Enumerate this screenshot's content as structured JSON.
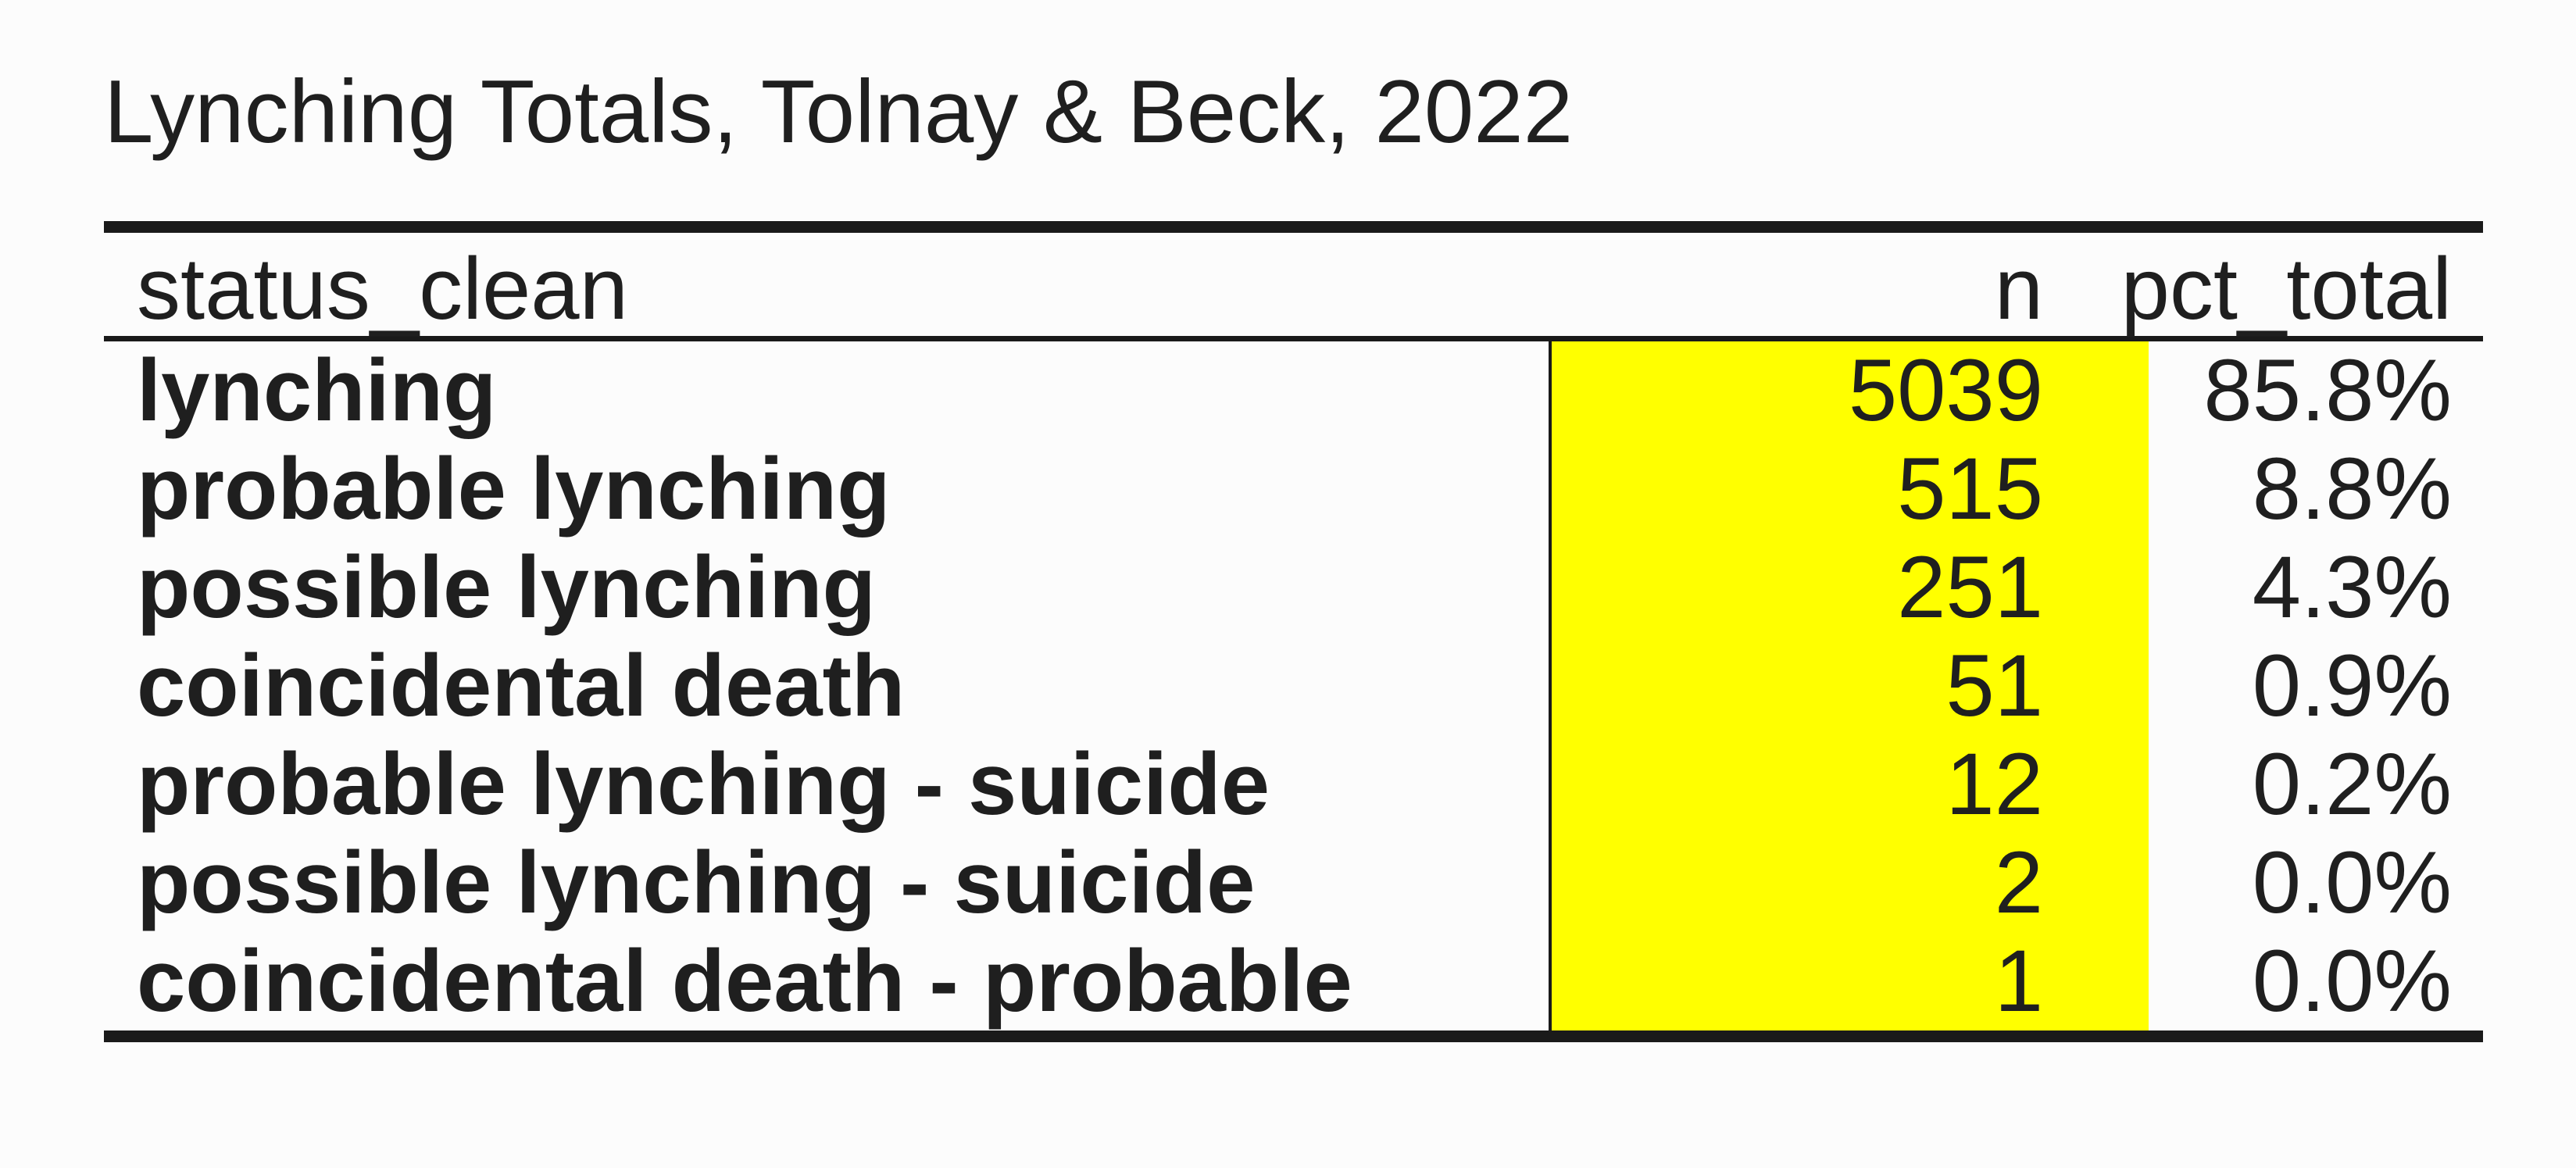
{
  "title": "Lynching Totals, Tolnay & Beck, 2022",
  "table": {
    "headers": {
      "status": "status_clean",
      "n": "n",
      "pct": "pct_total"
    },
    "rows": [
      {
        "status": "lynching",
        "n": "5039",
        "pct": "85.8%"
      },
      {
        "status": "probable lynching",
        "n": "515",
        "pct": "8.8%"
      },
      {
        "status": "possible lynching",
        "n": "251",
        "pct": "4.3%"
      },
      {
        "status": "coincidental death",
        "n": "51",
        "pct": "0.9%"
      },
      {
        "status": "probable lynching - suicide",
        "n": "12",
        "pct": "0.2%"
      },
      {
        "status": "possible lynching - suicide",
        "n": "2",
        "pct": "0.0%"
      },
      {
        "status": "coincidental death - probable",
        "n": "1",
        "pct": "0.0%"
      }
    ]
  },
  "colors": {
    "highlight": "#ffff00",
    "text": "#1f1f1f",
    "rule": "#1a1a1a",
    "background": "#fcfcfc"
  }
}
